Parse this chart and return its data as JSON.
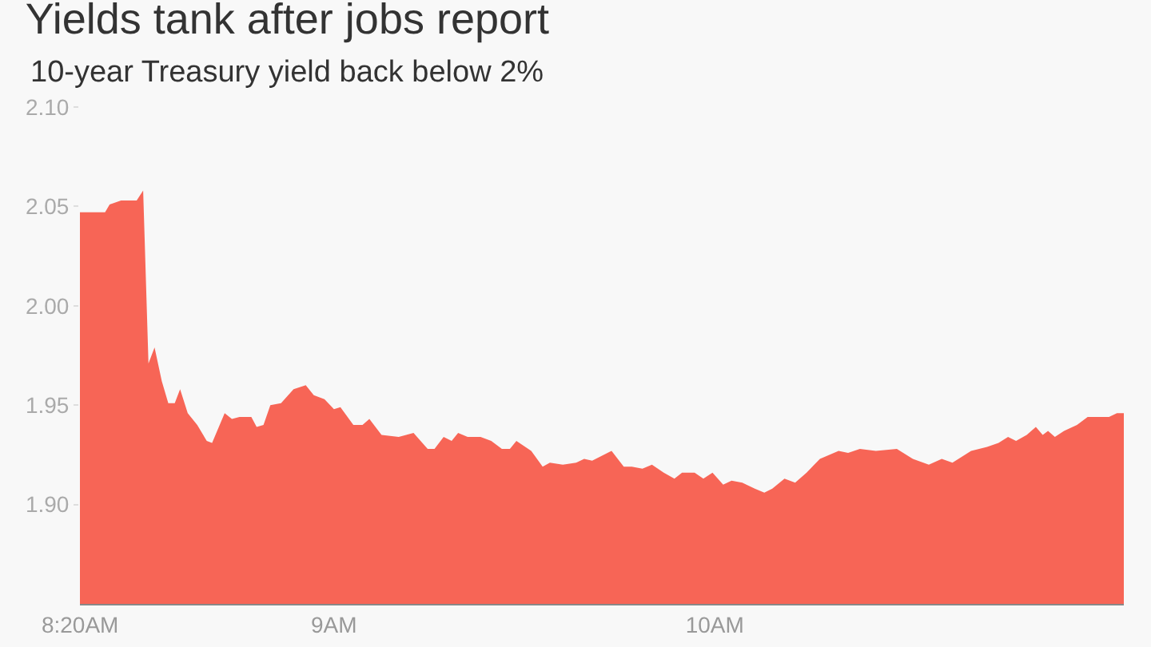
{
  "chart_data": {
    "type": "area",
    "title": "Yields tank after jobs report",
    "subtitle": "10-year Treasury yield back below 2%",
    "x": [
      8.333,
      8.399,
      8.411,
      8.441,
      8.482,
      8.499,
      8.513,
      8.529,
      8.548,
      8.565,
      8.582,
      8.596,
      8.616,
      8.641,
      8.666,
      8.68,
      8.713,
      8.732,
      8.752,
      8.783,
      8.797,
      8.815,
      8.833,
      8.861,
      8.894,
      8.926,
      8.947,
      8.975,
      9.0,
      9.017,
      9.051,
      9.075,
      9.093,
      9.125,
      9.17,
      9.209,
      9.246,
      9.264,
      9.288,
      9.309,
      9.326,
      9.351,
      9.385,
      9.413,
      9.441,
      9.462,
      9.479,
      9.518,
      9.548,
      9.567,
      9.601,
      9.636,
      9.657,
      9.678,
      9.729,
      9.761,
      9.782,
      9.81,
      9.835,
      9.866,
      9.894,
      9.914,
      9.947,
      9.97,
      9.994,
      10.022,
      10.044,
      10.072,
      10.105,
      10.13,
      10.151,
      10.183,
      10.211,
      10.241,
      10.276,
      10.325,
      10.35,
      10.381,
      10.423,
      10.478,
      10.52,
      10.562,
      10.596,
      10.624,
      10.673,
      10.715,
      10.745,
      10.77,
      10.791,
      10.819,
      10.843,
      10.861,
      10.875,
      10.893,
      10.917,
      10.951,
      10.979,
      11.035,
      11.056,
      11.074
    ],
    "series": [
      {
        "color": "#f76556",
        "values": [
          2.047,
          2.047,
          2.051,
          2.053,
          2.053,
          2.058,
          1.971,
          1.979,
          1.962,
          1.951,
          1.951,
          1.958,
          1.946,
          1.94,
          1.932,
          1.931,
          1.946,
          1.943,
          1.944,
          1.944,
          1.939,
          1.94,
          1.95,
          1.951,
          1.958,
          1.96,
          1.955,
          1.953,
          1.948,
          1.949,
          1.94,
          1.94,
          1.943,
          1.935,
          1.934,
          1.936,
          1.928,
          1.928,
          1.934,
          1.932,
          1.936,
          1.934,
          1.934,
          1.932,
          1.928,
          1.928,
          1.932,
          1.927,
          1.919,
          1.921,
          1.92,
          1.921,
          1.923,
          1.922,
          1.927,
          1.919,
          1.919,
          1.918,
          1.92,
          1.916,
          1.913,
          1.916,
          1.916,
          1.913,
          1.916,
          1.91,
          1.912,
          1.911,
          1.908,
          1.906,
          1.908,
          1.913,
          1.911,
          1.916,
          1.923,
          1.927,
          1.926,
          1.928,
          1.927,
          1.928,
          1.923,
          1.92,
          1.923,
          1.921,
          1.927,
          1.929,
          1.931,
          1.934,
          1.932,
          1.935,
          1.939,
          1.935,
          1.937,
          1.934,
          1.937,
          1.94,
          1.944,
          1.944,
          1.946,
          1.946
        ]
      }
    ],
    "xlim": [
      8.333,
      11.074
    ],
    "xticks": [
      {
        "value": 8.3333,
        "label": "8:20AM"
      },
      {
        "value": 9,
        "label": "9AM"
      },
      {
        "value": 10,
        "label": "10AM"
      }
    ],
    "ylim": [
      1.85,
      2.1
    ],
    "yticks": [
      {
        "value": 1.9,
        "label": "1.90"
      },
      1.95,
      {
        "value": 2.0,
        "label": "2.00"
      },
      2.05,
      {
        "value": 2.1,
        "label": "2.10"
      }
    ],
    "grid": false,
    "legend": false
  }
}
